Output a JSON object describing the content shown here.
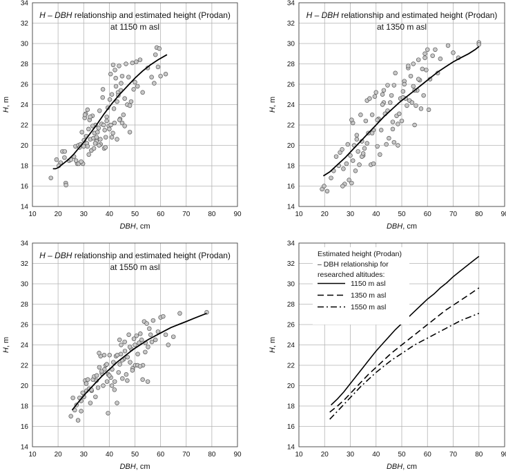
{
  "figure": {
    "style": {
      "point_fill": "#c8c8c8",
      "point_stroke": "#555555",
      "line_color": "#000000",
      "grid_color": "#b3b3b3"
    }
  },
  "chart_data": [
    {
      "type": "scatter",
      "title_lines": [
        [
          {
            "t": "H",
            "i": true
          },
          {
            "t": " – ",
            "i": false
          },
          {
            "t": "DBH",
            "i": true
          },
          {
            "t": " relationship and estimated height (Prodan)",
            "i": false
          }
        ],
        [
          {
            "t": "at 1150 m asl",
            "i": false
          }
        ]
      ],
      "xlabel": [
        {
          "t": "DBH",
          "i": true
        },
        {
          "t": ", cm",
          "i": false
        }
      ],
      "ylabel": [
        {
          "t": "H",
          "i": true
        },
        {
          "t": ", m",
          "i": false
        }
      ],
      "xlim": [
        10,
        90
      ],
      "ylim": [
        14,
        34
      ],
      "xticks": [
        10,
        20,
        30,
        40,
        50,
        60,
        70,
        80,
        90
      ],
      "yticks": [
        14,
        16,
        18,
        20,
        22,
        24,
        26,
        28,
        30,
        32,
        34
      ],
      "grid": true,
      "fit_line": {
        "x": [
          18,
          19,
          20,
          22,
          24,
          26,
          28,
          30,
          32,
          35,
          38,
          41,
          44,
          47,
          50,
          53,
          56,
          59,
          62.5
        ],
        "y": [
          17.7,
          17.7,
          17.8,
          18.2,
          18.6,
          19.1,
          19.7,
          20.3,
          21.0,
          22.0,
          23.1,
          24.1,
          25.0,
          25.8,
          26.6,
          27.3,
          27.9,
          28.4,
          28.9
        ]
      },
      "points": {
        "x": [
          17.2,
          19.4,
          21.0,
          22.5,
          23.0,
          23.1,
          20.3,
          21.7,
          22.6,
          24.3,
          25.0,
          26.2,
          26.8,
          27.5,
          27.9,
          28.4,
          28.8,
          29.3,
          29.7,
          30.1,
          30.4,
          30.8,
          31.2,
          31.5,
          31.9,
          32.3,
          32.6,
          33.0,
          33.4,
          33.8,
          34.2,
          34.6,
          35.0,
          35.4,
          35.8,
          36.2,
          36.6,
          37.0,
          37.4,
          37.8,
          38.2,
          38.6,
          39.0,
          39.4,
          39.8,
          40.2,
          40.6,
          41.0,
          41.4,
          41.8,
          42.2,
          42.6,
          43.0,
          43.4,
          43.8,
          44.2,
          44.6,
          45.0,
          45.5,
          46.0,
          46.5,
          47.0,
          47.5,
          48.0,
          48.5,
          49.0,
          49.5,
          50.0,
          50.5,
          51.0,
          52.0,
          53.0,
          55.0,
          56.5,
          57.5,
          58.0,
          58.5,
          59.0,
          59.5,
          60.0,
          62.0,
          27.0,
          28.0,
          29.0,
          30.0,
          31.0,
          32.0,
          33.0,
          34.0,
          35.0,
          36.0,
          38.0,
          39.0,
          40.0,
          41.0,
          42.0,
          43.0,
          44.0,
          45.0,
          46.0,
          48.0,
          40.5,
          41.5,
          42.5,
          43.5,
          44.5,
          30.5,
          31.5,
          32.5,
          33.5,
          34.5,
          36.5,
          37.5,
          38.5
        ],
        "y": [
          16.8,
          18.6,
          18.3,
          18.8,
          16.3,
          16.1,
          18.0,
          19.4,
          19.4,
          18.5,
          18.6,
          18.9,
          19.9,
          18.2,
          20.0,
          19.8,
          20.1,
          21.3,
          18.2,
          20.5,
          22.7,
          23.1,
          20.2,
          19.9,
          21.6,
          22.5,
          20.6,
          19.5,
          22.9,
          20.7,
          21.2,
          22.0,
          20.4,
          21.3,
          21.7,
          23.4,
          20.1,
          22.1,
          24.7,
          22.0,
          21.5,
          20.8,
          22.8,
          23.7,
          21.9,
          24.5,
          22.0,
          25.0,
          21.2,
          23.6,
          27.4,
          25.8,
          24.3,
          25.2,
          27.8,
          22.6,
          26.1,
          26.8,
          23.0,
          24.6,
          28.0,
          24.0,
          26.7,
          23.9,
          24.3,
          28.1,
          25.5,
          26.2,
          28.2,
          25.8,
          28.4,
          25.2,
          27.6,
          26.7,
          26.1,
          28.9,
          29.6,
          27.7,
          29.5,
          26.8,
          27.0,
          18.5,
          18.2,
          18.4,
          19.9,
          20.9,
          19.1,
          19.5,
          19.7,
          20.8,
          20.0,
          19.7,
          22.4,
          21.6,
          20.8,
          22.2,
          20.6,
          22.5,
          22.2,
          21.9,
          21.3,
          27.0,
          27.9,
          26.6,
          24.9,
          25.4,
          23.0,
          23.5,
          22.8,
          21.9,
          20.2,
          20.6,
          25.5,
          19.8
        ]
      }
    },
    {
      "type": "scatter",
      "title_lines": [
        [
          {
            "t": "H",
            "i": true
          },
          {
            "t": " – ",
            "i": false
          },
          {
            "t": "DBH",
            "i": true
          },
          {
            "t": " relationship and estimated height (Prodan)",
            "i": false
          }
        ],
        [
          {
            "t": "at 1350 m asl",
            "i": false
          }
        ]
      ],
      "xlabel": [
        {
          "t": "DBH",
          "i": true
        },
        {
          "t": ", cm",
          "i": false
        }
      ],
      "ylabel": [
        {
          "t": "H",
          "i": true
        },
        {
          "t": ", m",
          "i": false
        }
      ],
      "xlim": [
        10,
        90
      ],
      "ylim": [
        14,
        34
      ],
      "xticks": [
        10,
        20,
        30,
        40,
        50,
        60,
        70,
        80,
        90
      ],
      "yticks": [
        14,
        16,
        18,
        20,
        22,
        24,
        26,
        28,
        30,
        32,
        34
      ],
      "grid": true,
      "fit_line": {
        "x": [
          19.5,
          22,
          25,
          28,
          31,
          34,
          37,
          40,
          43,
          46,
          49,
          52,
          55,
          58,
          61,
          64,
          67,
          70,
          73,
          76,
          78.5,
          80
        ],
        "y": [
          17.0,
          17.4,
          18.1,
          18.8,
          19.6,
          20.4,
          21.2,
          22.0,
          22.8,
          23.5,
          24.2,
          24.8,
          25.4,
          26.0,
          26.6,
          27.2,
          27.7,
          28.2,
          28.6,
          29.0,
          29.4,
          29.7
        ]
      },
      "points": {
        "x": [
          19.0,
          19.8,
          21.0,
          22.5,
          23.5,
          24.5,
          25.5,
          26.0,
          26.8,
          27.3,
          27.8,
          28.5,
          29.0,
          29.5,
          30.0,
          30.5,
          31.0,
          31.5,
          32.0,
          32.5,
          33.0,
          33.5,
          34.0,
          34.5,
          35.0,
          35.5,
          36.0,
          36.5,
          37.0,
          37.5,
          38.0,
          38.5,
          39.0,
          39.5,
          40.0,
          40.5,
          41.0,
          41.5,
          42.0,
          42.5,
          43.0,
          43.5,
          44.0,
          44.5,
          45.0,
          45.5,
          46.0,
          46.5,
          47.0,
          47.5,
          48.0,
          48.5,
          49.0,
          49.5,
          50.0,
          50.5,
          51.0,
          51.5,
          52.0,
          52.5,
          53.0,
          53.5,
          54.0,
          54.5,
          55.0,
          55.5,
          56.0,
          56.5,
          57.0,
          57.5,
          58.0,
          58.5,
          59.0,
          59.5,
          60.0,
          60.5,
          61.0,
          62.0,
          63.0,
          64.0,
          65.0,
          68.0,
          70.0,
          72.0,
          80.0,
          80.0,
          30.5,
          32.5,
          34.5,
          36.5,
          38.5,
          40.5,
          42.5,
          44.5,
          46.5,
          48.5,
          50.5,
          52.5,
          54.5,
          56.5,
          27.0,
          31.0,
          35.0,
          39.0,
          43.0,
          47.0,
          51.0,
          55.0,
          59.0
        ],
        "y": [
          15.7,
          16.0,
          15.5,
          16.8,
          17.5,
          18.9,
          18.0,
          19.3,
          19.6,
          17.7,
          16.2,
          18.2,
          20.1,
          16.6,
          19.0,
          16.3,
          22.2,
          20.0,
          17.5,
          20.6,
          19.4,
          18.1,
          23.0,
          20.4,
          19.0,
          19.7,
          22.4,
          24.4,
          21.2,
          24.6,
          18.1,
          23.0,
          21.5,
          24.8,
          25.2,
          19.9,
          22.6,
          19.1,
          21.5,
          25.0,
          24.2,
          23.1,
          20.1,
          25.9,
          20.7,
          24.2,
          24.9,
          22.3,
          25.9,
          27.1,
          22.9,
          20.0,
          23.1,
          24.6,
          22.4,
          25.3,
          26.3,
          24.6,
          23.9,
          27.6,
          24.4,
          26.8,
          24.2,
          25.8,
          22.0,
          23.9,
          25.4,
          28.4,
          26.4,
          23.6,
          27.5,
          24.9,
          29.0,
          27.4,
          29.4,
          23.5,
          26.5,
          28.8,
          29.4,
          27.1,
          28.5,
          29.8,
          29.1,
          28.6,
          30.1,
          29.9,
          22.5,
          21.0,
          18.9,
          20.2,
          21.2,
          22.5,
          24.0,
          23.4,
          21.6,
          22.1,
          24.7,
          27.8,
          28.0,
          26.5,
          16.0,
          18.5,
          19.2,
          18.2,
          25.4,
          20.3,
          26.0,
          25.4,
          28.6
        ]
      }
    },
    {
      "type": "scatter",
      "title_lines": [
        [
          {
            "t": "H",
            "i": true
          },
          {
            "t": " – ",
            "i": false
          },
          {
            "t": "DBH",
            "i": true
          },
          {
            "t": " relationship and estimated height (Prodan)",
            "i": false
          }
        ],
        [
          {
            "t": "at 1550 m asl",
            "i": false
          }
        ]
      ],
      "xlabel": [
        {
          "t": "DBH",
          "i": true
        },
        {
          "t": ", cm",
          "i": false
        }
      ],
      "ylabel": [
        {
          "t": "H",
          "i": true
        },
        {
          "t": ", m",
          "i": false
        }
      ],
      "xlim": [
        10,
        90
      ],
      "ylim": [
        14,
        34
      ],
      "xticks": [
        10,
        20,
        30,
        40,
        50,
        60,
        70,
        80,
        90
      ],
      "yticks": [
        14,
        16,
        18,
        20,
        22,
        24,
        26,
        28,
        30,
        32,
        34
      ],
      "grid": true,
      "fit_line": {
        "x": [
          25.5,
          28,
          31,
          34,
          37,
          40,
          43,
          46,
          49,
          52,
          55,
          58,
          61,
          64,
          67,
          70,
          73,
          76,
          78
        ],
        "y": [
          17.6,
          18.4,
          19.3,
          20.1,
          20.9,
          21.6,
          22.3,
          22.9,
          23.5,
          24.0,
          24.5,
          24.9,
          25.3,
          25.7,
          26.0,
          26.3,
          26.6,
          26.9,
          27.1
        ]
      },
      "points": {
        "x": [
          25.0,
          25.8,
          26.5,
          27.2,
          27.8,
          28.4,
          29.0,
          29.6,
          30.1,
          30.6,
          31.1,
          31.6,
          32.1,
          32.6,
          33.1,
          33.6,
          34.1,
          34.6,
          35.1,
          35.6,
          36.1,
          36.6,
          37.1,
          37.6,
          38.1,
          38.6,
          39.1,
          39.6,
          40.1,
          40.6,
          41.1,
          41.6,
          42.1,
          42.6,
          43.1,
          43.6,
          44.1,
          44.6,
          45.1,
          45.6,
          46.1,
          46.6,
          47.1,
          47.6,
          48.1,
          48.6,
          49.1,
          49.6,
          50.1,
          50.6,
          51.1,
          51.6,
          52.1,
          52.6,
          53.1,
          53.6,
          54.1,
          54.6,
          55.1,
          55.6,
          56.1,
          56.6,
          57.1,
          58.0,
          59.0,
          60.0,
          61.0,
          62.0,
          63.0,
          65.0,
          67.5,
          78.0,
          29.0,
          31.0,
          33.0,
          35.0,
          37.0,
          39.0,
          41.0,
          43.0,
          45.0,
          47.0,
          49.0,
          51.0,
          53.0,
          55.0,
          36.0,
          38.0,
          40.0,
          42.0,
          44.0,
          46.0,
          48.0,
          50.0,
          52.0,
          54.0,
          39.5,
          44.5
        ],
        "y": [
          17.0,
          18.8,
          17.6,
          18.1,
          16.6,
          18.8,
          17.5,
          19.3,
          18.9,
          20.5,
          19.5,
          20.6,
          19.7,
          18.3,
          19.5,
          20.6,
          20.9,
          18.9,
          21.0,
          19.8,
          21.8,
          22.9,
          21.2,
          20.0,
          21.6,
          22.0,
          20.4,
          21.1,
          23.0,
          20.8,
          21.6,
          22.3,
          20.4,
          22.9,
          23.0,
          21.3,
          22.1,
          24.0,
          20.7,
          22.6,
          23.4,
          21.1,
          22.8,
          25.0,
          22.3,
          23.6,
          21.7,
          24.6,
          22.0,
          24.9,
          23.1,
          24.2,
          25.1,
          24.5,
          22.0,
          26.3,
          24.2,
          26.1,
          23.8,
          25.6,
          25.0,
          24.3,
          26.4,
          24.5,
          25.3,
          26.7,
          26.8,
          25.0,
          24.0,
          24.8,
          27.1,
          27.2,
          18.5,
          20.2,
          19.6,
          20.5,
          21.4,
          22.1,
          20.0,
          18.3,
          22.5,
          20.5,
          21.5,
          22.0,
          20.6,
          20.4,
          23.2,
          23.0,
          21.0,
          19.6,
          24.5,
          24.3,
          23.8,
          24.0,
          21.9,
          23.3,
          17.3,
          23.1
        ]
      }
    },
    {
      "type": "line",
      "title_lines": [],
      "xlabel": [
        {
          "t": "DBH",
          "i": true
        },
        {
          "t": ", cm",
          "i": false
        }
      ],
      "ylabel": [
        {
          "t": "H",
          "i": true
        },
        {
          "t": ", m",
          "i": false
        }
      ],
      "xlim": [
        10,
        90
      ],
      "ylim": [
        14,
        34
      ],
      "xticks": [
        10,
        20,
        30,
        40,
        50,
        60,
        70,
        80,
        90
      ],
      "yticks": [
        14,
        16,
        18,
        20,
        22,
        24,
        26,
        28,
        30,
        32,
        34
      ],
      "grid": true,
      "legend_title": [
        "Estimated height (Prodan)",
        "– DBH relationship for",
        "researched altitudes:"
      ],
      "series": [
        {
          "name": "1150 m asl",
          "dash": "solid",
          "x": [
            22.5,
            25,
            27.5,
            30,
            32.5,
            35,
            37.5,
            40,
            42.5,
            45,
            47.5,
            50,
            52.5,
            55,
            57.5,
            60,
            62.5,
            65,
            67.5,
            70,
            72.5,
            75,
            77.5,
            80
          ],
          "y": [
            18.1,
            18.7,
            19.4,
            20.2,
            21.0,
            21.8,
            22.6,
            23.4,
            24.1,
            24.8,
            25.5,
            26.1,
            26.7,
            27.3,
            27.9,
            28.5,
            29.0,
            29.6,
            30.1,
            30.7,
            31.2,
            31.7,
            32.2,
            32.7
          ]
        },
        {
          "name": "1350 m asl",
          "dash": "dash",
          "x": [
            22,
            25,
            28,
            31,
            34,
            37,
            40,
            43,
            46,
            49,
            52,
            55,
            58,
            61,
            64,
            67,
            70,
            73,
            76,
            80
          ],
          "y": [
            17.4,
            18.0,
            18.7,
            19.5,
            20.3,
            21.1,
            21.8,
            22.5,
            23.2,
            23.8,
            24.4,
            25.0,
            25.6,
            26.2,
            26.8,
            27.4,
            27.9,
            28.4,
            28.9,
            29.6
          ]
        },
        {
          "name": "1550 m asl",
          "dash": "dashdot",
          "x": [
            22,
            25,
            28,
            31,
            34,
            37,
            40,
            43,
            46,
            49,
            52,
            55,
            58,
            61,
            64,
            67,
            70,
            73,
            76,
            80
          ],
          "y": [
            16.7,
            17.5,
            18.3,
            19.1,
            19.9,
            20.6,
            21.3,
            21.9,
            22.5,
            23.0,
            23.5,
            24.0,
            24.4,
            24.8,
            25.2,
            25.6,
            26.0,
            26.4,
            26.7,
            27.1
          ]
        }
      ]
    }
  ]
}
